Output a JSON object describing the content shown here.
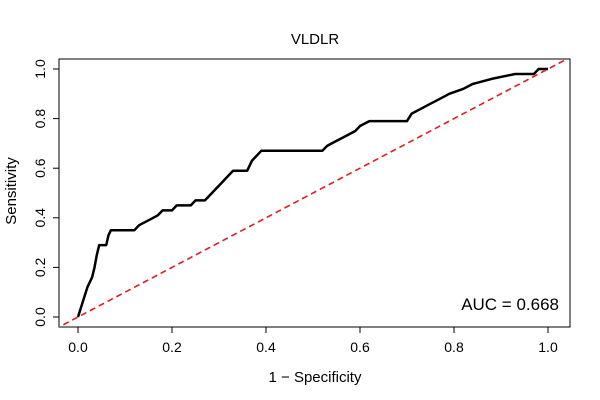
{
  "chart_data": {
    "type": "line",
    "title": "VLDLR",
    "xlabel": "1 − Specificity",
    "ylabel": "Sensitivity",
    "xlim": [
      0,
      1
    ],
    "ylim": [
      0,
      1
    ],
    "xticks": [
      "0.0",
      "0.2",
      "0.4",
      "0.6",
      "0.8",
      "1.0"
    ],
    "yticks": [
      "0.0",
      "0.2",
      "0.4",
      "0.6",
      "0.8",
      "1.0"
    ],
    "annotation": "AUC = 0.668",
    "grid": false,
    "series": [
      {
        "kind": "roc-curve",
        "color": "#000000",
        "style": "solid",
        "points": [
          [
            0.0,
            0.0
          ],
          [
            0.01,
            0.06
          ],
          [
            0.02,
            0.12
          ],
          [
            0.03,
            0.16
          ],
          [
            0.035,
            0.2
          ],
          [
            0.04,
            0.25
          ],
          [
            0.045,
            0.29
          ],
          [
            0.06,
            0.29
          ],
          [
            0.065,
            0.33
          ],
          [
            0.07,
            0.35
          ],
          [
            0.12,
            0.35
          ],
          [
            0.13,
            0.37
          ],
          [
            0.15,
            0.39
          ],
          [
            0.17,
            0.41
          ],
          [
            0.18,
            0.43
          ],
          [
            0.2,
            0.43
          ],
          [
            0.21,
            0.45
          ],
          [
            0.24,
            0.45
          ],
          [
            0.25,
            0.47
          ],
          [
            0.27,
            0.47
          ],
          [
            0.28,
            0.49
          ],
          [
            0.29,
            0.51
          ],
          [
            0.3,
            0.53
          ],
          [
            0.31,
            0.55
          ],
          [
            0.32,
            0.57
          ],
          [
            0.33,
            0.59
          ],
          [
            0.36,
            0.59
          ],
          [
            0.37,
            0.63
          ],
          [
            0.39,
            0.67
          ],
          [
            0.52,
            0.67
          ],
          [
            0.53,
            0.69
          ],
          [
            0.55,
            0.71
          ],
          [
            0.57,
            0.73
          ],
          [
            0.59,
            0.75
          ],
          [
            0.6,
            0.77
          ],
          [
            0.62,
            0.79
          ],
          [
            0.7,
            0.79
          ],
          [
            0.71,
            0.82
          ],
          [
            0.73,
            0.84
          ],
          [
            0.75,
            0.86
          ],
          [
            0.77,
            0.88
          ],
          [
            0.79,
            0.9
          ],
          [
            0.82,
            0.92
          ],
          [
            0.84,
            0.94
          ],
          [
            0.88,
            0.96
          ],
          [
            0.93,
            0.98
          ],
          [
            0.97,
            0.98
          ],
          [
            0.98,
            1.0
          ],
          [
            1.0,
            1.0
          ]
        ]
      },
      {
        "kind": "reference-diagonal",
        "color": "#e41a1c",
        "style": "dashed",
        "points": [
          [
            0,
            0
          ],
          [
            1,
            1
          ]
        ]
      }
    ]
  }
}
